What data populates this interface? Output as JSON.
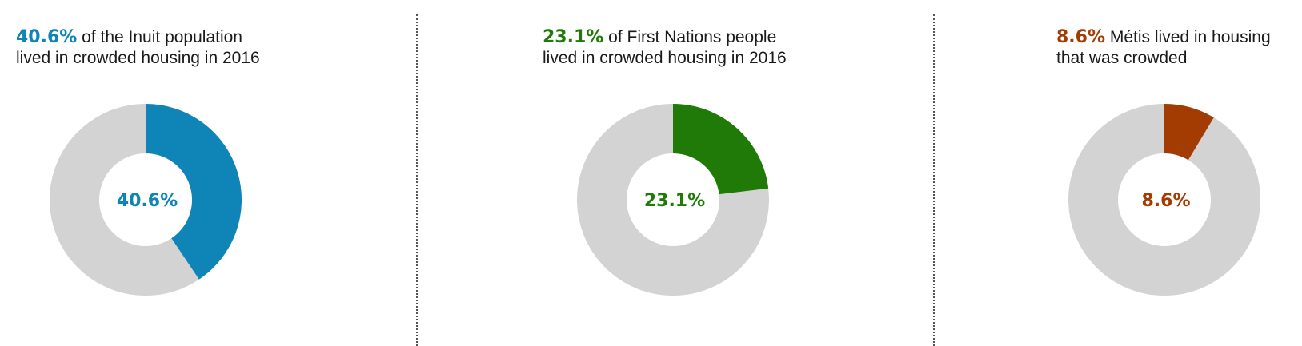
{
  "colors": {
    "remainder": "#d3d3d3"
  },
  "chart_data": [
    {
      "type": "pie",
      "variant": "donut",
      "highlight": "40.6%",
      "text_line1": " of the Inuit population",
      "text_line2": "lived in crowded housing in 2016",
      "center_label": "40.6%",
      "value_percent": 40.6,
      "color": "#0f84b6"
    },
    {
      "type": "pie",
      "variant": "donut",
      "highlight": "23.1%",
      "text_line1": " of First Nations people",
      "text_line2": "lived in crowded housing in 2016",
      "center_label": "23.1%",
      "value_percent": 23.1,
      "color": "#1f7a07"
    },
    {
      "type": "pie",
      "variant": "donut",
      "highlight": "8.6%",
      "text_line1": " Métis lived in housing",
      "text_line2": "that was crowded",
      "center_label": "8.6%",
      "value_percent": 8.6,
      "color": "#a33c02"
    }
  ]
}
